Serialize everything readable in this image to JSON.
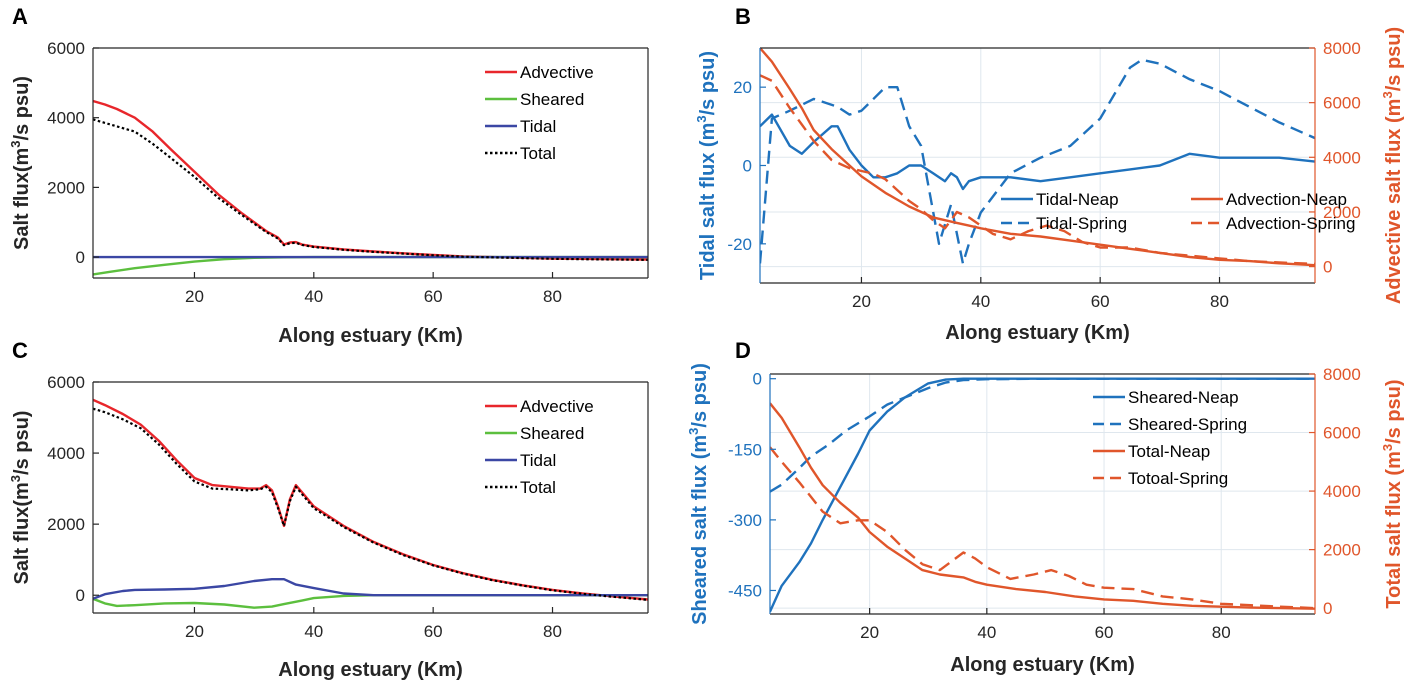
{
  "panels": [
    {
      "label": "A",
      "xlabel": "Along estuary (Km)",
      "ylabel": "Salt flux(m3/s psu)",
      "xlim": [
        3,
        96
      ],
      "ylim": [
        -600,
        6000
      ],
      "xticks": [
        20,
        40,
        60,
        80
      ],
      "yticks": [
        0,
        2000,
        4000,
        6000
      ],
      "grid": false,
      "legend_position": "top-right",
      "series": [
        {
          "name": "Advective",
          "color": "#e8262b",
          "dash": "solid",
          "x": [
            3,
            5,
            7,
            10,
            13,
            16,
            20,
            24,
            28,
            32,
            34,
            35,
            36,
            37,
            38,
            40,
            45,
            50,
            55,
            60,
            65,
            70,
            75,
            80,
            85,
            90,
            96
          ],
          "y": [
            4480,
            4380,
            4250,
            4000,
            3600,
            3100,
            2450,
            1800,
            1250,
            750,
            560,
            360,
            420,
            430,
            360,
            300,
            220,
            160,
            110,
            60,
            20,
            0,
            -20,
            -40,
            -50,
            -60,
            -70
          ]
        },
        {
          "name": "Sheared",
          "color": "#5cbf3e",
          "dash": "solid",
          "x": [
            3,
            6,
            10,
            15,
            20,
            25,
            30,
            35,
            40,
            50,
            60,
            70,
            80,
            96
          ],
          "y": [
            -500,
            -420,
            -320,
            -220,
            -130,
            -60,
            -20,
            -5,
            0,
            0,
            0,
            0,
            0,
            0
          ]
        },
        {
          "name": "Tidal",
          "color": "#3b47a4",
          "dash": "solid",
          "x": [
            3,
            20,
            40,
            60,
            80,
            96
          ],
          "y": [
            0,
            0,
            0,
            0,
            0,
            0
          ]
        },
        {
          "name": "Total",
          "color": "#000000",
          "dash": "dot",
          "x": [
            3,
            5,
            7,
            10,
            13,
            16,
            20,
            24,
            28,
            32,
            34,
            35,
            36,
            37,
            38,
            40,
            45,
            50,
            55,
            60,
            65,
            70,
            75,
            80,
            85,
            90,
            96
          ],
          "y": [
            3950,
            3850,
            3750,
            3600,
            3250,
            2850,
            2300,
            1700,
            1200,
            720,
            530,
            340,
            400,
            410,
            350,
            290,
            210,
            150,
            100,
            50,
            10,
            -10,
            -30,
            -50,
            -60,
            -70,
            -80
          ]
        }
      ]
    },
    {
      "label": "B",
      "xlabel": "Along estuary (Km)",
      "ylabel": "Tidal salt flux (m3/s psu)",
      "ylabel_right": "Advective salt flux (m3/s psu)",
      "xlim": [
        3,
        96
      ],
      "ylim": [
        -30,
        30
      ],
      "ylim_right": [
        -600,
        8000
      ],
      "xticks": [
        20,
        40,
        60,
        80
      ],
      "yticks": [
        -20,
        0,
        20
      ],
      "yticks_right": [
        0,
        2000,
        4000,
        6000,
        8000
      ],
      "grid": true,
      "legend_position": "lower-right",
      "legend_columns": 2,
      "left_color": "#1f72bd",
      "right_color": "#e0562b",
      "series": [
        {
          "name": "Tidal-Neap",
          "axis": "left",
          "color": "#1f72bd",
          "dash": "solid",
          "x": [
            3,
            5,
            8,
            10,
            12,
            15,
            16,
            18,
            20,
            22,
            24,
            26,
            28,
            30,
            32,
            34,
            35,
            36,
            37,
            38,
            40,
            45,
            50,
            55,
            60,
            65,
            70,
            75,
            80,
            85,
            90,
            96
          ],
          "y": [
            10,
            13,
            5,
            3,
            6,
            10,
            10,
            4,
            0,
            -3,
            -3,
            -2,
            0,
            0,
            -2,
            -4,
            -2,
            -3,
            -6,
            -4,
            -3,
            -3,
            -4,
            -3,
            -2,
            -1,
            0,
            3,
            2,
            2,
            2,
            1
          ]
        },
        {
          "name": "Tidal-Spring",
          "axis": "left",
          "color": "#1f72bd",
          "dash": "dash",
          "x": [
            3,
            5,
            8,
            12,
            16,
            18,
            20,
            24,
            26,
            28,
            30,
            33,
            35,
            37,
            38,
            40,
            45,
            50,
            55,
            60,
            65,
            67,
            70,
            75,
            80,
            85,
            90,
            96
          ],
          "y": [
            -25,
            12,
            14,
            17,
            15,
            13,
            14,
            20,
            20,
            10,
            5,
            -20,
            -10,
            -25,
            -20,
            -12,
            -2,
            2,
            5,
            12,
            25,
            27,
            26,
            22,
            19,
            15,
            11,
            7
          ]
        },
        {
          "name": "Advection-Neap",
          "axis": "right",
          "color": "#e0562b",
          "dash": "solid",
          "x": [
            3,
            5,
            8,
            10,
            12,
            15,
            18,
            20,
            24,
            28,
            32,
            34,
            36,
            38,
            40,
            45,
            50,
            55,
            60,
            65,
            70,
            75,
            80,
            85,
            90,
            96
          ],
          "y": [
            8000,
            7500,
            6500,
            5800,
            5000,
            4300,
            3700,
            3300,
            2700,
            2200,
            1800,
            1700,
            1600,
            1500,
            1400,
            1200,
            1100,
            950,
            800,
            650,
            500,
            350,
            250,
            200,
            120,
            50
          ]
        },
        {
          "name": "Advection-Spring",
          "axis": "right",
          "color": "#e0562b",
          "dash": "dash",
          "x": [
            3,
            5,
            8,
            10,
            12,
            15,
            18,
            20,
            22,
            24,
            26,
            28,
            30,
            32,
            34,
            36,
            38,
            40,
            42,
            45,
            48,
            51,
            54,
            57,
            60,
            65,
            70,
            75,
            80,
            85,
            90,
            96
          ],
          "y": [
            7000,
            6800,
            5800,
            5200,
            4600,
            3900,
            3600,
            3500,
            3400,
            3200,
            2800,
            2400,
            2100,
            1700,
            1400,
            2000,
            1800,
            1500,
            1200,
            1000,
            1300,
            1500,
            1300,
            900,
            700,
            700,
            500,
            400,
            300,
            200,
            150,
            100
          ]
        }
      ]
    },
    {
      "label": "C",
      "xlabel": "Along estuary (Km)",
      "ylabel": "Salt flux(m3/s psu)",
      "xlim": [
        3,
        96
      ],
      "ylim": [
        -500,
        6000
      ],
      "xticks": [
        20,
        40,
        60,
        80
      ],
      "yticks": [
        0,
        2000,
        4000,
        6000
      ],
      "grid": false,
      "legend_position": "top-right",
      "series": [
        {
          "name": "Advective",
          "color": "#e8262b",
          "dash": "solid",
          "x": [
            3,
            5,
            8,
            11,
            14,
            17,
            20,
            23,
            26,
            29,
            31,
            32,
            33,
            34,
            35,
            36,
            37,
            38,
            40,
            45,
            50,
            55,
            60,
            65,
            70,
            75,
            80,
            85,
            90,
            96
          ],
          "y": [
            5500,
            5350,
            5100,
            4800,
            4350,
            3800,
            3300,
            3100,
            3050,
            3000,
            3000,
            3100,
            2950,
            2500,
            1950,
            2700,
            3100,
            2900,
            2500,
            1950,
            1500,
            1150,
            850,
            620,
            430,
            280,
            150,
            50,
            -30,
            -120
          ]
        },
        {
          "name": "Sheared",
          "color": "#5cbf3e",
          "dash": "solid",
          "x": [
            3,
            5,
            7,
            10,
            15,
            20,
            25,
            30,
            33,
            35,
            38,
            40,
            45,
            50,
            60,
            70,
            96
          ],
          "y": [
            -100,
            -230,
            -300,
            -280,
            -230,
            -220,
            -260,
            -350,
            -320,
            -250,
            -150,
            -80,
            -20,
            0,
            0,
            0,
            0
          ]
        },
        {
          "name": "Tidal",
          "color": "#3b47a4",
          "dash": "solid",
          "x": [
            3,
            5,
            8,
            10,
            15,
            20,
            25,
            30,
            33,
            35,
            37,
            40,
            45,
            50,
            60,
            70,
            80,
            90,
            96
          ],
          "y": [
            -100,
            30,
            120,
            150,
            160,
            180,
            260,
            400,
            450,
            450,
            300,
            200,
            50,
            0,
            0,
            0,
            0,
            0,
            0
          ]
        },
        {
          "name": "Total",
          "color": "#000000",
          "dash": "dot",
          "x": [
            3,
            5,
            8,
            11,
            14,
            17,
            20,
            23,
            26,
            29,
            31,
            32,
            33,
            34,
            35,
            36,
            37,
            38,
            40,
            45,
            50,
            55,
            60,
            65,
            70,
            75,
            80,
            85,
            90,
            96
          ],
          "y": [
            5250,
            5150,
            4950,
            4700,
            4250,
            3700,
            3200,
            3000,
            2980,
            2950,
            2980,
            3050,
            2900,
            2450,
            1950,
            2650,
            3050,
            2850,
            2450,
            1920,
            1480,
            1130,
            840,
            610,
            420,
            270,
            140,
            40,
            -40,
            -130
          ]
        }
      ]
    },
    {
      "label": "D",
      "xlabel": "Along estuary (Km)",
      "ylabel": "Sheared salt flux (m3/s psu)",
      "ylabel_right": "Total salt flux (m3/s psu)",
      "xlim": [
        3,
        96
      ],
      "ylim": [
        -500,
        10
      ],
      "ylim_right": [
        -200,
        8000
      ],
      "xticks": [
        20,
        40,
        60,
        80
      ],
      "yticks": [
        -450,
        -300,
        -150,
        0
      ],
      "yticks_right": [
        0,
        2000,
        4000,
        6000,
        8000
      ],
      "grid": true,
      "legend_position": "top-right",
      "legend_columns": 1,
      "left_color": "#1f72bd",
      "right_color": "#e0562b",
      "series": [
        {
          "name": "Sheared-Neap",
          "axis": "left",
          "color": "#1f72bd",
          "dash": "solid",
          "x": [
            3,
            5,
            8,
            10,
            12,
            15,
            18,
            20,
            23,
            26,
            30,
            33,
            36,
            40,
            50,
            60,
            70,
            80,
            90,
            96
          ],
          "y": [
            -495,
            -440,
            -390,
            -350,
            -300,
            -230,
            -160,
            -110,
            -70,
            -40,
            -10,
            -2,
            0,
            0,
            0,
            0,
            0,
            0,
            0,
            0
          ]
        },
        {
          "name": "Sheared-Spring",
          "axis": "left",
          "color": "#1f72bd",
          "dash": "dash",
          "x": [
            3,
            5,
            8,
            10,
            13,
            16,
            20,
            23,
            26,
            30,
            33,
            36,
            40,
            50,
            60,
            70,
            80,
            90,
            96
          ],
          "y": [
            -240,
            -225,
            -190,
            -165,
            -140,
            -110,
            -80,
            -55,
            -40,
            -20,
            -8,
            -3,
            -1,
            0,
            0,
            0,
            0,
            0,
            0
          ]
        },
        {
          "name": "Total-Neap",
          "axis": "right",
          "color": "#e0562b",
          "dash": "solid",
          "x": [
            3,
            5,
            8,
            10,
            12,
            15,
            18,
            20,
            23,
            26,
            29,
            32,
            34,
            36,
            38,
            40,
            45,
            50,
            55,
            60,
            65,
            70,
            75,
            80,
            85,
            90,
            96
          ],
          "y": [
            7000,
            6500,
            5500,
            4800,
            4200,
            3600,
            3100,
            2600,
            2100,
            1700,
            1300,
            1150,
            1100,
            1050,
            900,
            800,
            650,
            550,
            400,
            300,
            250,
            150,
            80,
            50,
            20,
            0,
            -20
          ]
        },
        {
          "name": "Totoal-Spring",
          "axis": "right",
          "color": "#e0562b",
          "dash": "dash",
          "x": [
            3,
            5,
            8,
            10,
            12,
            15,
            18,
            20,
            23,
            26,
            29,
            32,
            34,
            36,
            38,
            40,
            44,
            48,
            51,
            54,
            57,
            60,
            65,
            70,
            75,
            80,
            85,
            90,
            96
          ],
          "y": [
            5500,
            5000,
            4300,
            3800,
            3300,
            2900,
            3000,
            3000,
            2600,
            2000,
            1500,
            1300,
            1600,
            1900,
            1700,
            1400,
            1000,
            1150,
            1300,
            1100,
            800,
            700,
            650,
            400,
            300,
            150,
            100,
            50,
            0
          ]
        }
      ]
    }
  ],
  "chart_data": [
    {
      "type": "line",
      "panel": "A",
      "title": "",
      "xlabel": "Along estuary (Km)",
      "ylabel": "Salt flux(m3/s psu)",
      "xlim": [
        3,
        96
      ],
      "ylim": [
        -600,
        6000
      ],
      "legend": [
        "Advective",
        "Sheared",
        "Tidal",
        "Total"
      ],
      "legend_position": "top-right"
    },
    {
      "type": "line",
      "panel": "B",
      "title": "",
      "xlabel": "Along estuary (Km)",
      "ylabel": "Tidal salt flux (m3/s psu)",
      "ylabel_right": "Advective salt flux (m3/s psu)",
      "xlim": [
        3,
        96
      ],
      "ylim": [
        -30,
        30
      ],
      "ylim_right": [
        -600,
        8000
      ],
      "legend": [
        "Tidal-Neap",
        "Advection-Neap",
        "Tidal-Spring",
        "Advection-Spring"
      ],
      "legend_position": "lower-right"
    },
    {
      "type": "line",
      "panel": "C",
      "title": "",
      "xlabel": "Along estuary (Km)",
      "ylabel": "Salt flux(m3/s psu)",
      "xlim": [
        3,
        96
      ],
      "ylim": [
        -500,
        6000
      ],
      "legend": [
        "Advective",
        "Sheared",
        "Tidal",
        "Total"
      ],
      "legend_position": "top-right"
    },
    {
      "type": "line",
      "panel": "D",
      "title": "",
      "xlabel": "Along estuary (Km)",
      "ylabel": "Sheared salt flux (m3/s psu)",
      "ylabel_right": "Total salt flux (m3/s psu)",
      "xlim": [
        3,
        96
      ],
      "ylim": [
        -500,
        10
      ],
      "ylim_right": [
        -200,
        8000
      ],
      "legend": [
        "Sheared-Neap",
        "Sheared-Spring",
        "Total-Neap",
        "Totoal-Spring"
      ],
      "legend_position": "top-right"
    }
  ]
}
